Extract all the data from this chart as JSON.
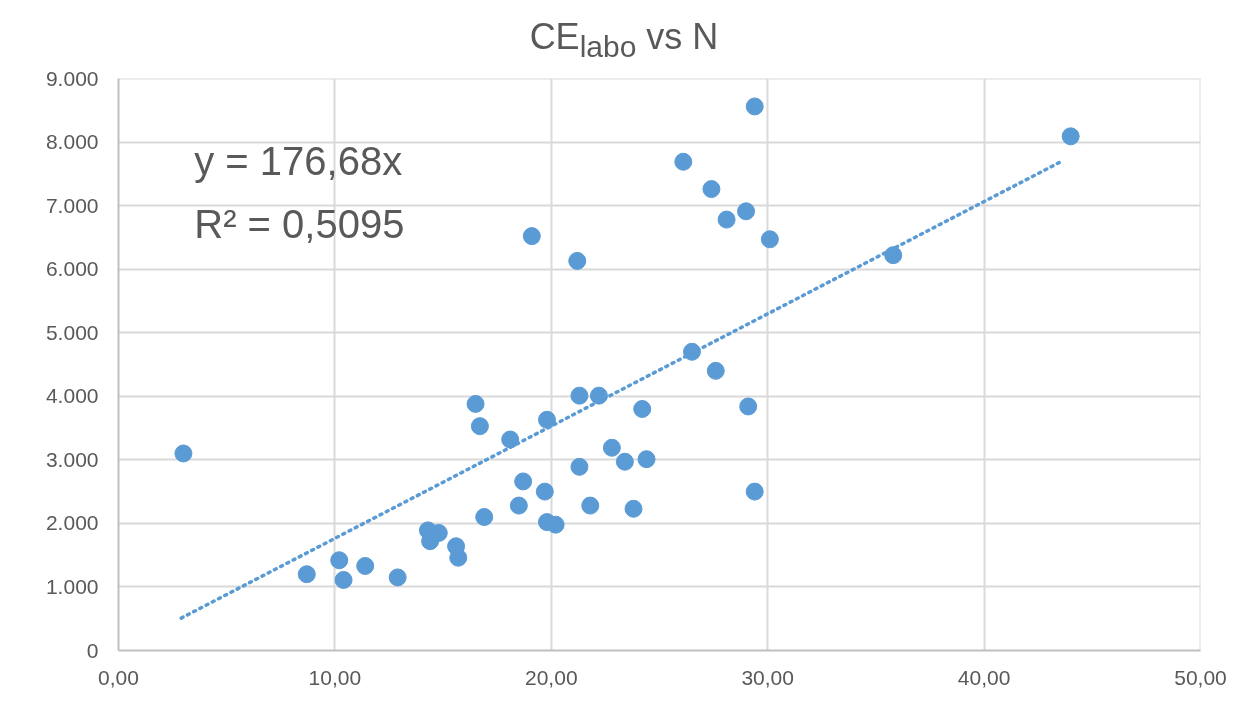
{
  "chart_data": {
    "type": "scatter",
    "title": "CE$_{labo}$ vs N",
    "annotations": [
      "y = 176,68x",
      "R² = 0,5095"
    ],
    "xlim": [
      0,
      50
    ],
    "ylim": [
      0,
      9000
    ],
    "xticks": [
      {
        "value": 0,
        "label": "0,00"
      },
      {
        "value": 10,
        "label": "10,00"
      },
      {
        "value": 20,
        "label": "20,00"
      },
      {
        "value": 30,
        "label": "30,00"
      },
      {
        "value": 40,
        "label": "40,00"
      },
      {
        "value": 50,
        "label": "50,00"
      }
    ],
    "yticks": [
      0,
      {
        "value": 1000,
        "label": "1.000"
      },
      {
        "value": 2000,
        "label": "2.000"
      },
      {
        "value": 3000,
        "label": "3.000"
      },
      {
        "value": 4000,
        "label": "4.000"
      },
      {
        "value": 5000,
        "label": "5.000"
      },
      {
        "value": 6000,
        "label": "6.000"
      },
      {
        "value": 7000,
        "label": "7.000"
      },
      {
        "value": 8000,
        "label": "8.000"
      },
      {
        "value": 9000,
        "label": "9.000"
      }
    ],
    "grid": true,
    "marker": "circle",
    "series": [
      {
        "color": "#5b9bd5",
        "x": [
          3.0,
          8.7,
          10.2,
          10.4,
          11.4,
          12.9,
          14.3,
          14.4,
          14.8,
          15.6,
          15.7,
          16.5,
          16.7,
          16.9,
          18.1,
          18.5,
          18.7,
          19.1,
          19.7,
          19.8,
          19.8,
          20.2,
          21.2,
          21.3,
          21.3,
          21.8,
          22.2,
          22.8,
          23.4,
          23.8,
          24.2,
          24.4,
          29.4,
          44.0,
          26.1,
          27.4,
          28.1,
          29.0,
          30.1,
          35.8,
          26.5,
          27.6,
          29.1,
          29.4
        ],
        "values": [
          3100,
          1200,
          1420,
          1110,
          1330,
          1150,
          1890,
          1720,
          1850,
          1640,
          1460,
          3880,
          3530,
          2100,
          3320,
          2280,
          2660,
          6520,
          2500,
          3630,
          2020,
          1980,
          6130,
          4010,
          2890,
          2280,
          4010,
          3190,
          2970,
          2230,
          3800,
          3010,
          8560,
          8090,
          7690,
          7260,
          6780,
          6910,
          6470,
          6220,
          4700,
          4400,
          3840,
          2500
        ]
      },
      {
        "type": "line",
        "color": "#5b9bd5",
        "marker": "none",
        "line_style": "dotted",
        "x": [
          2.9,
          43.6
        ],
        "values": [
          510,
          7700
        ]
      }
    ]
  }
}
